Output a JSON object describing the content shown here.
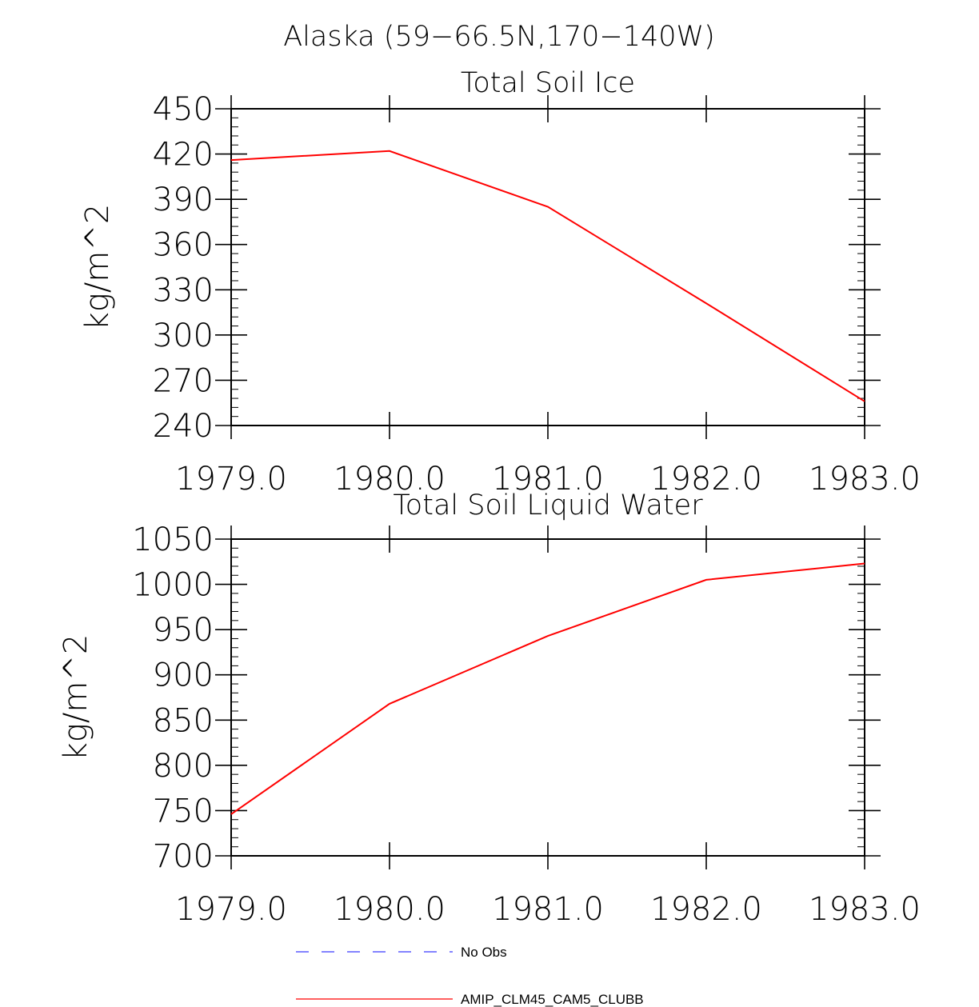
{
  "figure_title": "Alaska (59−66.5N,170−140W)",
  "legend": {
    "entries": [
      {
        "label": "No Obs",
        "color": "#3b3bff",
        "style": "dashed"
      },
      {
        "label": "AMIP_CLM45_CAM5_CLUBB",
        "color": "#ff0000",
        "style": "solid"
      }
    ]
  },
  "chart_data": [
    {
      "type": "line",
      "title": "Total Soil Ice",
      "xlabel": "",
      "ylabel": "kg/m^2",
      "x": [
        1979,
        1980,
        1981,
        1982,
        1983
      ],
      "xlim": [
        1979,
        1983
      ],
      "xticks": [
        1979,
        1980,
        1981,
        1982,
        1983
      ],
      "xtick_labels": [
        "1979.0",
        "1980.0",
        "1981.0",
        "1982.0",
        "1983.0"
      ],
      "ylim": [
        240,
        450
      ],
      "yticks": [
        240,
        270,
        300,
        330,
        360,
        390,
        420,
        450
      ],
      "ytick_labels": [
        "240",
        "270",
        "300",
        "330",
        "360",
        "390",
        "420",
        "450"
      ],
      "y_minor_step": 6,
      "series": [
        {
          "name": "AMIP_CLM45_CAM5_CLUBB",
          "color": "#ff0000",
          "values": [
            416,
            422,
            385,
            321,
            256
          ]
        }
      ]
    },
    {
      "type": "line",
      "title": "Total Soil Liquid Water",
      "xlabel": "",
      "ylabel": "kg/m^2",
      "x": [
        1979,
        1980,
        1981,
        1982,
        1983
      ],
      "xlim": [
        1979,
        1983
      ],
      "xticks": [
        1979,
        1980,
        1981,
        1982,
        1983
      ],
      "xtick_labels": [
        "1979.0",
        "1980.0",
        "1981.0",
        "1982.0",
        "1983.0"
      ],
      "ylim": [
        700,
        1050
      ],
      "yticks": [
        700,
        750,
        800,
        850,
        900,
        950,
        1000,
        1050
      ],
      "ytick_labels": [
        "700",
        "750",
        "800",
        "850",
        "900",
        "950",
        "1000",
        "1050"
      ],
      "y_minor_step": 10,
      "series": [
        {
          "name": "AMIP_CLM45_CAM5_CLUBB",
          "color": "#ff0000",
          "values": [
            746,
            868,
            943,
            1005,
            1023
          ]
        }
      ]
    }
  ]
}
